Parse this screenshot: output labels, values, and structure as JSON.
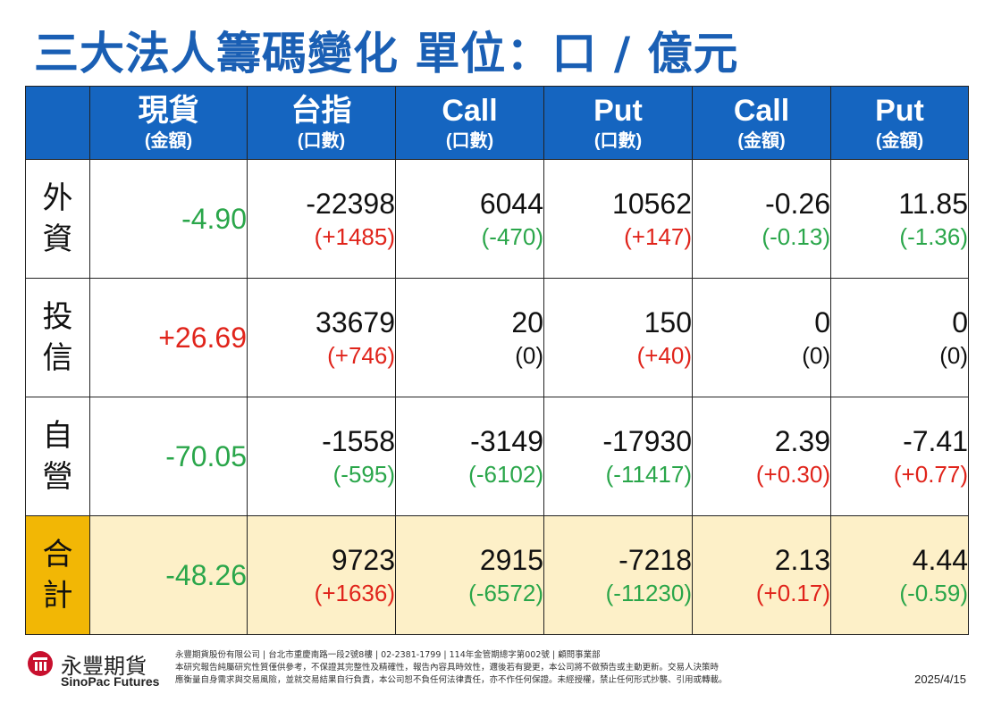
{
  "title": "三大法人籌碼變化 單位：口 / 億元",
  "columns": [
    {
      "main": "現貨",
      "sub": "(金額)"
    },
    {
      "main": "台指",
      "sub": "(口數)"
    },
    {
      "main": "Call",
      "sub": "(口數)"
    },
    {
      "main": "Put",
      "sub": "(口數)"
    },
    {
      "main": "Call",
      "sub": "(金額)"
    },
    {
      "main": "Put",
      "sub": "(金額)"
    }
  ],
  "rows": [
    {
      "name": [
        "外",
        "資"
      ],
      "spot": "-4.90",
      "cells": [
        {
          "value": "-22398",
          "change": "(+1485)"
        },
        {
          "value": "6044",
          "change": "(-470)"
        },
        {
          "value": "10562",
          "change": "(+147)"
        },
        {
          "value": "-0.26",
          "change": "(-0.13)"
        },
        {
          "value": "11.85",
          "change": "(-1.36)"
        }
      ]
    },
    {
      "name": [
        "投",
        "信"
      ],
      "spot": "+26.69",
      "cells": [
        {
          "value": "33679",
          "change": "(+746)"
        },
        {
          "value": "20",
          "change": "(0)"
        },
        {
          "value": "150",
          "change": "(+40)"
        },
        {
          "value": "0",
          "change": "(0)"
        },
        {
          "value": "0",
          "change": "(0)"
        }
      ]
    },
    {
      "name": [
        "自",
        "營"
      ],
      "spot": "-70.05",
      "cells": [
        {
          "value": "-1558",
          "change": "(-595)"
        },
        {
          "value": "-3149",
          "change": "(-6102)"
        },
        {
          "value": "-17930",
          "change": "(-11417)"
        },
        {
          "value": "2.39",
          "change": "(+0.30)"
        },
        {
          "value": "-7.41",
          "change": "(+0.77)"
        }
      ]
    },
    {
      "name": [
        "合",
        "計"
      ],
      "spot": "-48.26",
      "cells": [
        {
          "value": "9723",
          "change": "(+1636)"
        },
        {
          "value": "2915",
          "change": "(-6572)"
        },
        {
          "value": "-7218",
          "change": "(-11230)"
        },
        {
          "value": "2.13",
          "change": "(+0.17)"
        },
        {
          "value": "4.44",
          "change": "(-0.59)"
        }
      ]
    }
  ],
  "colors": {
    "title": "#1a5fb4",
    "header_bg": "#1565c0",
    "positive": "#e0241b",
    "negative": "#2aa64a",
    "total_row_bg": "#fdf0c8",
    "total_label_bg": "#f2b705"
  },
  "footer": {
    "logo_icon": "sinopac-logo-icon",
    "brand_cn": "永豐期貨",
    "brand_en": "SinoPac Futures",
    "disclaimer_1": "永豐期貨股份有限公司 | 台北市重慶南路一段2號8樓 | 02-2381-1799 | 114年金管期總字第002號 | 顧問事業部",
    "disclaimer_2": "本研究報告純屬研究性質僅供參考，不保證其完整性及精確性，報告內容具時效性，邇後若有變更，本公司將不做預告或主動更新。交易人決策時",
    "disclaimer_3": "應衡量自身需求與交易風險，並就交易結果自行負責，本公司恕不負任何法律責任，亦不作任何保證。未經授權，禁止任何形式抄襲、引用或轉載。",
    "date": "2025/4/15"
  }
}
